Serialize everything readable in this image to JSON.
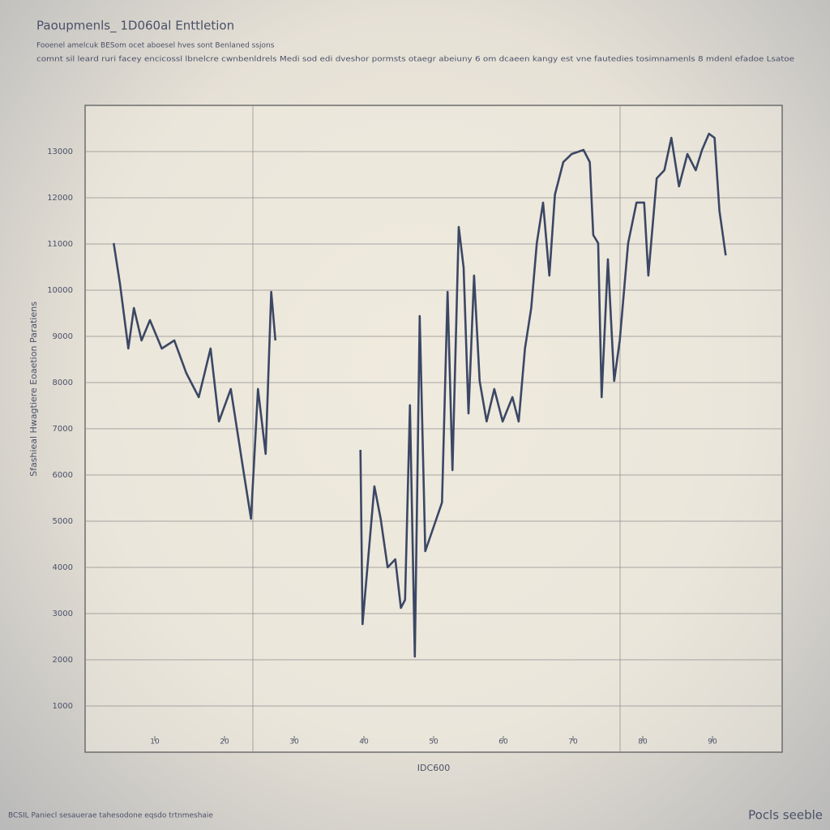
{
  "chart_data": {
    "type": "line",
    "title": "Paoupmenls_ 1D060al Enttletion",
    "subtitle": "Fooenel amelcuk BESom ocet aboesel hves sont Benlaned ssjons",
    "description": "comnt sil leard ruri facey encicossl lbnelcre cwnbenldrels Medi sod edi dveshor pormsts otaegr abeiuny 6 om dcaeen kangy est vne fautedies tosimnamenls 8 mdenl efadoe Lsatoe",
    "y_label": "Sfashieal Hwagtiere Eoaetion Paratiens",
    "x_label": "IDC600",
    "footer_left": "BCSIL Paniecl sesauerae tahesodone eqsdo trtnmeshaie",
    "footer_right": "Pocls seeble",
    "color": "#3b4764",
    "grid": true,
    "xlim": [
      0,
      100
    ],
    "xticks": [
      10,
      20,
      30,
      40,
      50,
      60,
      70,
      80,
      90
    ],
    "ylim": [
      0,
      14000
    ],
    "yticks": [
      1000,
      2000,
      3000,
      4000,
      5000,
      6000,
      7000,
      8000,
      9000,
      10000,
      11000,
      12000,
      13000
    ],
    "x": [
      4.1,
      5,
      6.2,
      7,
      8.1,
      9.3,
      11,
      12.8,
      14.5,
      16.3,
      18,
      19.2,
      20.9,
      22.7,
      23.8,
      24.8,
      25.9,
      26.7,
      27.3,
      33,
      39.5,
      39.8,
      40.7,
      41.5,
      42.4,
      43.4,
      44.5,
      45.3,
      45.9,
      46.6,
      47.3,
      48,
      48.8,
      50,
      51.2,
      52,
      52.7,
      53.6,
      54.3,
      55,
      55.8,
      56.6,
      57.6,
      58.7,
      59.9,
      61.3,
      62.2,
      63.1,
      64,
      64.8,
      65.7,
      66.6,
      67.4,
      68.6,
      69.8,
      71.5,
      72.4,
      72.9,
      73.6,
      74.1,
      75,
      75.9,
      76.7,
      77.9,
      79.1,
      80.2,
      80.8,
      82,
      83.1,
      84.1,
      85.2,
      86.4,
      87.6,
      88.5,
      89.5,
      90.3,
      91,
      91.9
    ],
    "values": [
      11018,
      10140,
      8737,
      9614,
      8912,
      9351,
      8737,
      8912,
      8211,
      7684,
      8737,
      7158,
      7860,
      6105,
      5053,
      7860,
      6456,
      9965,
      8912,
      null,
      6544,
      2772,
      4351,
      5754,
      5053,
      4000,
      4175,
      3123,
      3298,
      7509,
      2070,
      9439,
      4351,
      4877,
      5404,
      9965,
      6105,
      11368,
      10491,
      7333,
      10316,
      8035,
      7158,
      7860,
      7158,
      7684,
      7158,
      8737,
      9614,
      11018,
      11895,
      10316,
      12070,
      12772,
      12947,
      13035,
      12772,
      11193,
      11018,
      7684,
      10667,
      8035,
      8912,
      11018,
      11895,
      11895,
      10316,
      12421,
      12596,
      13298,
      12246,
      12947,
      12596,
      13035,
      13386,
      13298,
      11719,
      10754
    ]
  }
}
